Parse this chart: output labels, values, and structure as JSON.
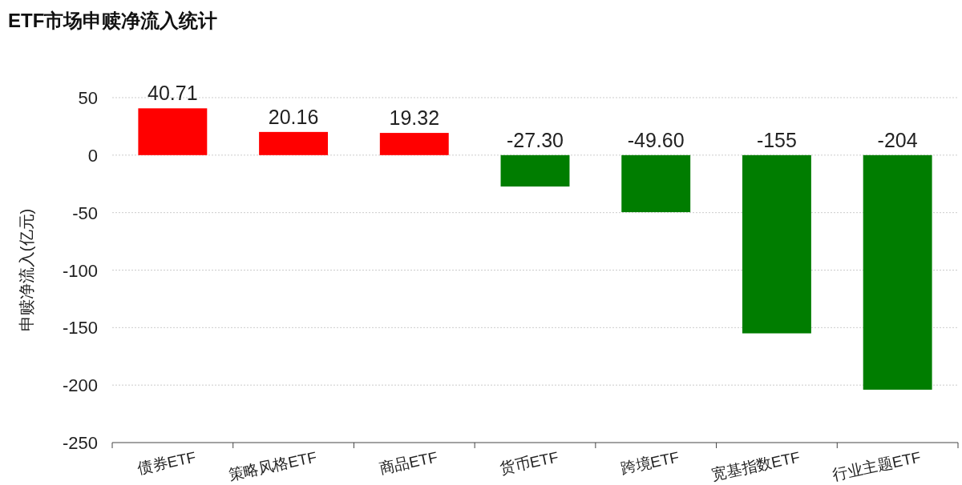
{
  "chart_data": {
    "type": "bar",
    "title": "ETF市场申赎净流入统计",
    "ylabel": "申赎净流入(亿元)",
    "categories": [
      "债券ETF",
      "策略风格ETF",
      "商品ETF",
      "货币ETF",
      "跨境ETF",
      "宽基指数ETF",
      "行业主题ETF"
    ],
    "values": [
      40.71,
      20.16,
      19.32,
      -27.3,
      -49.6,
      -155,
      -204
    ],
    "value_labels": [
      "40.71",
      "20.16",
      "19.32",
      "-27.30",
      "-49.60",
      "-155",
      "-204"
    ],
    "colors": [
      "#ff0000",
      "#ff0000",
      "#ff0000",
      "#007d00",
      "#007d00",
      "#007d00",
      "#007d00"
    ],
    "ylim": [
      -250,
      50
    ],
    "yticks": [
      -250,
      -200,
      -150,
      -100,
      -50,
      0,
      50
    ],
    "grid": "y"
  }
}
